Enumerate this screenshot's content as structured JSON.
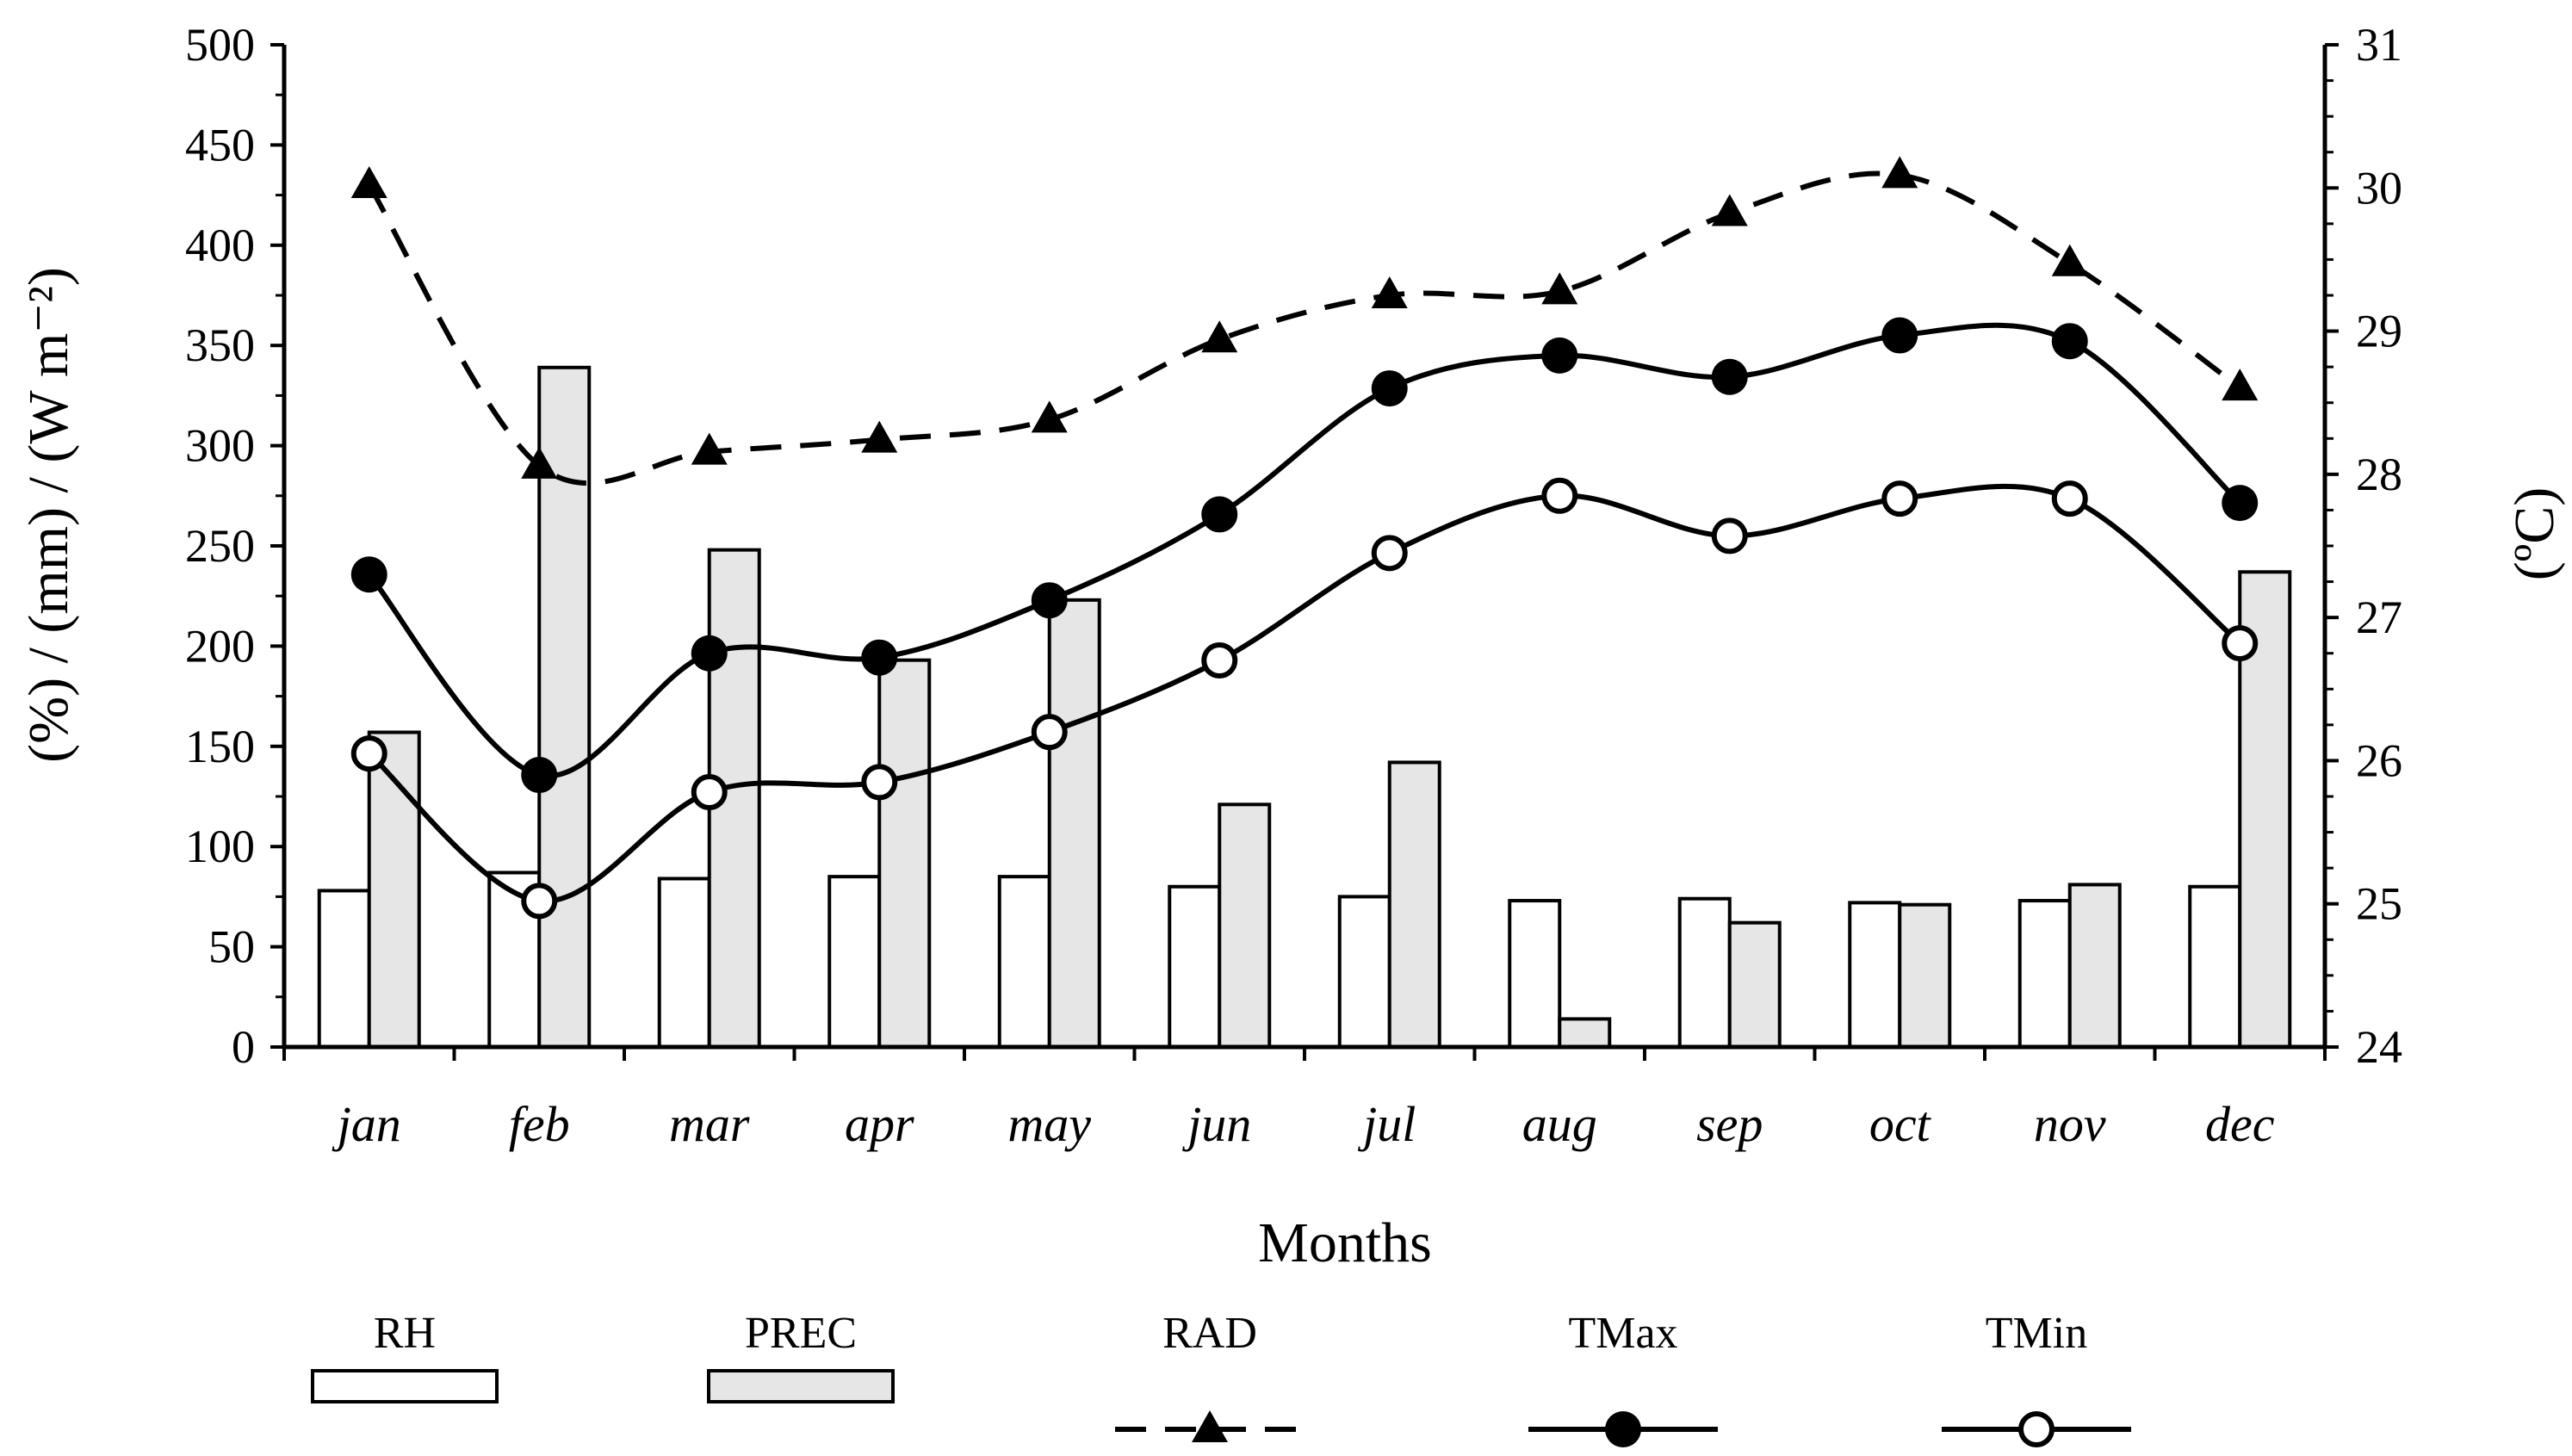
{
  "chart_data": {
    "type": "bar+line",
    "xlabel": "Months",
    "ylabel_left": "(%) / (mm) / (W m⁻²)",
    "ylabel_right": "(ºC)",
    "ylim_left": [
      0,
      500
    ],
    "ylim_right": [
      24,
      31
    ],
    "left_ticks": [
      "0",
      "50",
      "100",
      "150",
      "200",
      "250",
      "300",
      "350",
      "400",
      "450",
      "500"
    ],
    "right_ticks": [
      "24",
      "25",
      "26",
      "27",
      "28",
      "29",
      "30",
      "31"
    ],
    "categories": [
      "jan",
      "feb",
      "mar",
      "apr",
      "may",
      "jun",
      "jul",
      "aug",
      "sep",
      "oct",
      "nov",
      "dec"
    ],
    "series": [
      {
        "name": "RH",
        "kind": "bar",
        "axis": "left",
        "color": "#ffffff",
        "values": [
          78,
          87,
          84,
          85,
          85,
          80,
          75,
          73,
          74,
          72,
          73,
          80
        ]
      },
      {
        "name": "PREC",
        "kind": "bar",
        "axis": "left",
        "color": "#e6e6e6",
        "values": [
          157,
          339,
          248,
          193,
          223,
          121,
          142,
          14,
          62,
          71,
          81,
          237
        ]
      },
      {
        "name": "RAD",
        "kind": "line",
        "axis": "left",
        "style": "dashed",
        "marker": "triangle",
        "values": [
          430,
          290,
          297,
          303,
          313,
          353,
          375,
          377,
          416,
          435,
          391,
          329
        ]
      },
      {
        "name": "TMax",
        "kind": "line",
        "axis": "right",
        "style": "solid",
        "marker": "filled-circle",
        "values": [
          27.3,
          25.9,
          26.75,
          26.72,
          27.12,
          27.72,
          28.6,
          28.83,
          28.68,
          28.97,
          28.93,
          27.8
        ]
      },
      {
        "name": "TMin",
        "kind": "line",
        "axis": "right",
        "style": "solid",
        "marker": "open-circle",
        "values": [
          26.05,
          25.02,
          25.78,
          25.85,
          26.2,
          26.7,
          27.45,
          27.85,
          27.57,
          27.83,
          27.83,
          26.82
        ]
      }
    ],
    "legend": [
      {
        "label": "RH"
      },
      {
        "label": "PREC"
      },
      {
        "label": "RAD"
      },
      {
        "label": "TMax"
      },
      {
        "label": "TMin"
      }
    ],
    "legend_position": "bottom"
  }
}
